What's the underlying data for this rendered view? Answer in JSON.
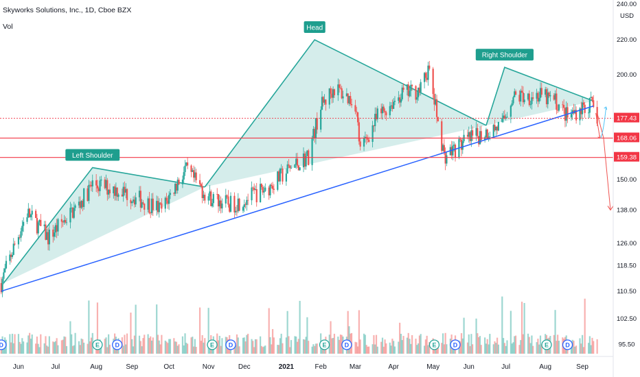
{
  "header": {
    "title": "Skyworks Solutions, Inc., 1D, Cboe BZX",
    "volume_label": "Vol"
  },
  "currency": "USD",
  "colors": {
    "up": "#26a69a",
    "down": "#ef5350",
    "trendline": "#2962ff",
    "pattern_fill": "#b2dfdb",
    "pattern_line": "#26a69a",
    "level_line": "#f23645",
    "label_bg": "#1e9e8e",
    "forecast": "#ef5350",
    "forecast_alt": "#4fc3f7"
  },
  "chart_data": {
    "type": "candlestick",
    "title": "Skyworks Solutions, Inc., 1D, Cboe BZX",
    "y_scale": "log",
    "ylim": [
      94,
      243
    ],
    "grid": false,
    "y_ticks": [
      "240.00",
      "220.00",
      "200.00",
      "177.43",
      "168.06",
      "159.38",
      "150.00",
      "138.00",
      "126.00",
      "118.50",
      "110.50",
      "102.50",
      "95.50"
    ],
    "x_ticks": [
      "Jun",
      "Jul",
      "Aug",
      "Sep",
      "Oct",
      "Nov",
      "Dec",
      "2021",
      "Feb",
      "Mar",
      "Apr",
      "May",
      "Jun",
      "Jul",
      "Aug",
      "Sep"
    ],
    "price_labels": [
      {
        "value": 177.43,
        "text": "177.43"
      },
      {
        "value": 168.06,
        "text": "168.06"
      },
      {
        "value": 159.38,
        "text": "159.38"
      }
    ],
    "annotations": [
      {
        "text": "Left Shoulder"
      },
      {
        "text": "Head"
      },
      {
        "text": "Right Shoulder"
      }
    ],
    "key_points": [
      {
        "date": "2020-05-18",
        "price": 110.5,
        "role": "trendline start"
      },
      {
        "date": "2020-05-20",
        "price": 113,
        "role": "pattern start"
      },
      {
        "date": "2020-07-31",
        "price": 155,
        "role": "left shoulder peak"
      },
      {
        "date": "2020-10-30",
        "price": 147,
        "role": "left neckline low"
      },
      {
        "date": "2021-01-27",
        "price": 220,
        "role": "head peak"
      },
      {
        "date": "2021-06-15",
        "price": 174,
        "role": "right neckline low"
      },
      {
        "date": "2021-06-30",
        "price": 204,
        "role": "right shoulder peak"
      },
      {
        "date": "2021-09-10",
        "price": 186,
        "role": "pattern end"
      },
      {
        "date": "2021-09-10",
        "price": 183.5,
        "role": "trendline end"
      }
    ],
    "forecast": {
      "target": 138,
      "alt_high": 183
    },
    "candles_note": "daily OHLC bars May 2020 – Sep 2021"
  }
}
